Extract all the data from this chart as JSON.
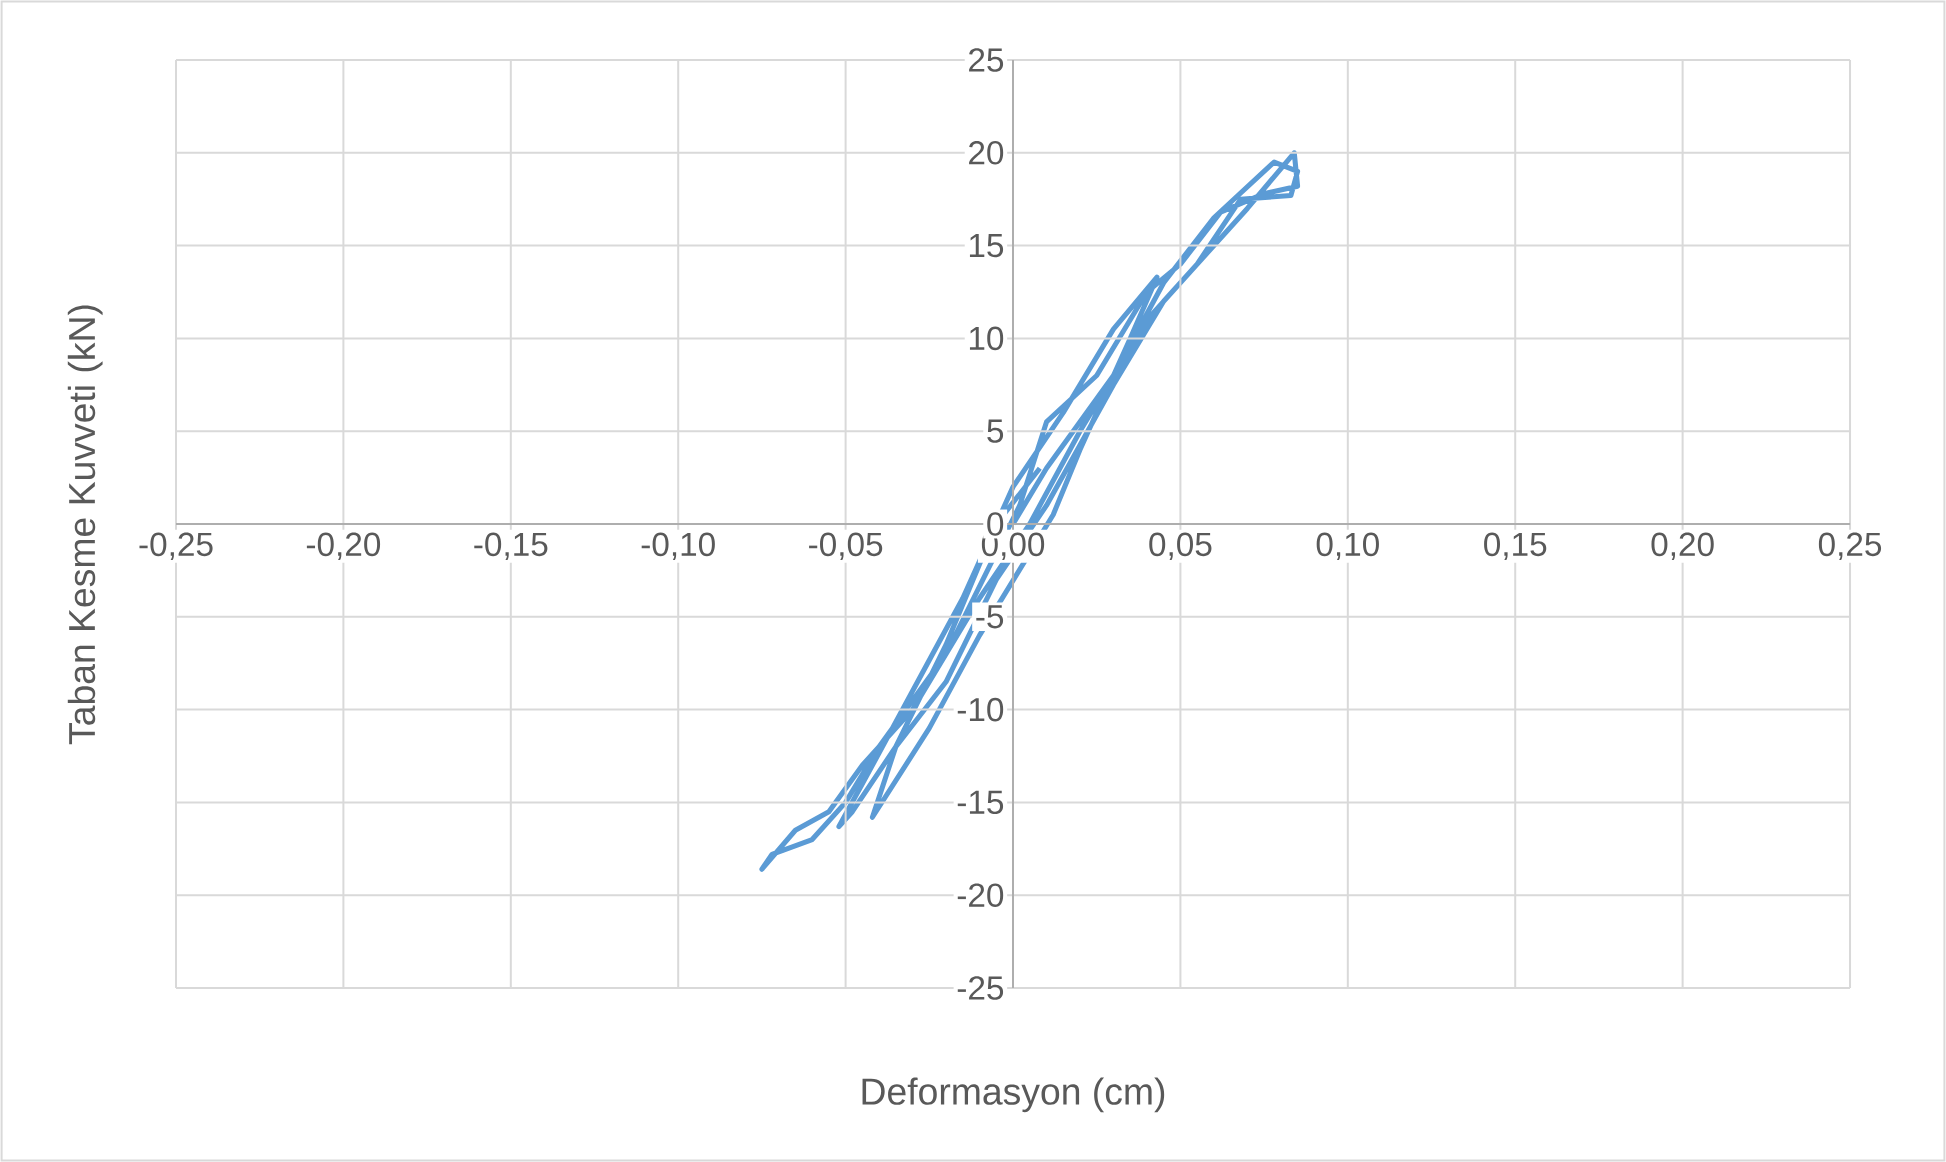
{
  "chart_data": {
    "type": "line",
    "xlabel": "Deformasyon (cm)",
    "ylabel": "Taban Kesme Kuvveti (kN)",
    "xlim": [
      -0.25,
      0.25
    ],
    "ylim": [
      -25,
      25
    ],
    "xticks": [
      {
        "value": -0.25,
        "label": "-0,25"
      },
      {
        "value": -0.2,
        "label": "-0,20"
      },
      {
        "value": -0.15,
        "label": "-0,15"
      },
      {
        "value": -0.1,
        "label": "-0,10"
      },
      {
        "value": -0.05,
        "label": "-0,05"
      },
      {
        "value": 0,
        "label": "0,00"
      },
      {
        "value": 0.05,
        "label": "0,05"
      },
      {
        "value": 0.1,
        "label": "0,10"
      },
      {
        "value": 0.15,
        "label": "0,15"
      },
      {
        "value": 0.2,
        "label": "0,20"
      },
      {
        "value": 0.25,
        "label": "0,25"
      }
    ],
    "yticks": [
      -25,
      -20,
      -15,
      -10,
      -5,
      0,
      5,
      10,
      15,
      20,
      25
    ],
    "grid": true,
    "series": [
      {
        "color": "#5b9bd5",
        "x": [
          0,
          0.01,
          0.03,
          0.045,
          0.06,
          0.078,
          0.085,
          0.083,
          0.068,
          0.055,
          0.04,
          0.02,
          0.005,
          -0.01,
          -0.03,
          -0.045,
          -0.055,
          -0.065,
          -0.075,
          -0.072,
          -0.06,
          -0.05,
          -0.04,
          -0.02,
          0.002,
          0.01,
          0.025,
          0.04,
          0.05,
          0.062,
          0.075,
          0.085,
          0.084,
          0.07,
          0.045,
          0.03,
          0.01,
          -0.005,
          -0.02,
          -0.035,
          -0.048,
          -0.052,
          -0.045,
          -0.03,
          -0.015,
          0,
          0.015,
          0.03,
          0.043,
          0.035,
          0.02,
          0.012,
          -0.01,
          -0.025,
          -0.042,
          -0.035,
          -0.02,
          -0.005,
          0.008
        ],
        "values": [
          0,
          3,
          8,
          13,
          16.5,
          19.5,
          19,
          17.7,
          17.5,
          14,
          11,
          5,
          0,
          -4,
          -10,
          -13,
          -15.5,
          -16.5,
          -18.6,
          -17.8,
          -17,
          -15,
          -12,
          -7,
          1,
          5.5,
          8,
          12.5,
          14,
          16.8,
          17.8,
          18.2,
          20,
          17,
          12,
          7.5,
          1,
          -3,
          -8.5,
          -12,
          -15.5,
          -16.3,
          -14,
          -9,
          -4,
          2,
          6,
          10.5,
          13.3,
          10,
          4,
          0.5,
          -6,
          -11,
          -15.8,
          -12,
          -6.5,
          0,
          3
        ]
      }
    ]
  }
}
